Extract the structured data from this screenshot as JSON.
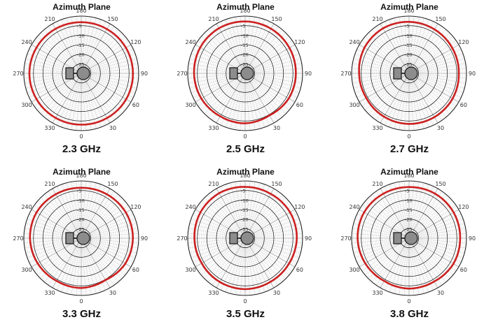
{
  "charts_title": "Azimuth Plane",
  "chart_data": [
    {
      "type": "polar-line",
      "title": "Azimuth Plane",
      "caption": "2.3 GHz",
      "angle_labels": [
        "180",
        "150",
        "120",
        "90",
        "60",
        "30",
        "0",
        "330",
        "300",
        "270",
        "240",
        "210"
      ],
      "radial_labels": [
        "-5",
        "-10",
        "-15",
        "-20",
        "-25"
      ],
      "rlim_db": [
        -30,
        0
      ],
      "grid": true,
      "series": [
        {
          "theta_deg": [
            0,
            30,
            60,
            90,
            120,
            150,
            180,
            210,
            240,
            270,
            300,
            330
          ],
          "r_db": [
            -3.1,
            -3.0,
            -2.9,
            -3.0,
            -3.1,
            -3.2,
            -3.2,
            -3.1,
            -3.0,
            -2.9,
            -3.0,
            -3.1
          ],
          "color": "#cc2020"
        }
      ]
    },
    {
      "type": "polar-line",
      "title": "Azimuth Plane",
      "caption": "2.5 GHz",
      "angle_labels": [
        "180",
        "150",
        "120",
        "90",
        "60",
        "30",
        "0",
        "330",
        "300",
        "270",
        "240",
        "210"
      ],
      "radial_labels": [
        "-5",
        "-10",
        "-15",
        "-20",
        "-25"
      ],
      "rlim_db": [
        -30,
        0
      ],
      "grid": true,
      "series": [
        {
          "theta_deg": [
            0,
            30,
            60,
            90,
            120,
            150,
            180,
            210,
            240,
            270,
            300,
            330
          ],
          "r_db": [
            -3.8,
            -4.6,
            -3.7,
            -3.5,
            -3.3,
            -3.0,
            -2.8,
            -2.7,
            -2.9,
            -3.3,
            -3.6,
            -4.0
          ],
          "color": "#cc2020"
        }
      ]
    },
    {
      "type": "polar-line",
      "title": "Azimuth Plane",
      "caption": "2.7 GHz",
      "angle_labels": [
        "180",
        "150",
        "120",
        "90",
        "60",
        "30",
        "0",
        "330",
        "300",
        "270",
        "240",
        "210"
      ],
      "radial_labels": [
        "-5",
        "-10",
        "-15",
        "-20",
        "-25"
      ],
      "rlim_db": [
        -30,
        0
      ],
      "grid": true,
      "series": [
        {
          "theta_deg": [
            0,
            30,
            60,
            90,
            120,
            150,
            180,
            210,
            240,
            270,
            300,
            330
          ],
          "r_db": [
            -3.5,
            -3.5,
            -3.7,
            -4.0,
            -3.8,
            -3.4,
            -3.0,
            -2.8,
            -3.1,
            -3.9,
            -4.2,
            -3.8
          ],
          "color": "#cc2020"
        }
      ]
    },
    {
      "type": "polar-line",
      "title": "Azimuth Plane",
      "caption": "3.3 GHz",
      "angle_labels": [
        "180",
        "150",
        "120",
        "90",
        "60",
        "30",
        "0",
        "330",
        "300",
        "270",
        "240",
        "210"
      ],
      "radial_labels": [
        "-5",
        "-10",
        "-15",
        "-20",
        "-25"
      ],
      "rlim_db": [
        -30,
        0
      ],
      "grid": true,
      "series": [
        {
          "theta_deg": [
            0,
            30,
            60,
            90,
            120,
            150,
            180,
            210,
            240,
            270,
            300,
            330
          ],
          "r_db": [
            -3.9,
            -4.7,
            -3.4,
            -3.0,
            -3.1,
            -3.4,
            -3.6,
            -3.4,
            -3.0,
            -3.2,
            -3.7,
            -4.2
          ],
          "color": "#cc2020"
        }
      ]
    },
    {
      "type": "polar-line",
      "title": "Azimuth Plane",
      "caption": "3.5 GHz",
      "angle_labels": [
        "180",
        "150",
        "120",
        "90",
        "60",
        "30",
        "0",
        "330",
        "300",
        "270",
        "240",
        "210"
      ],
      "radial_labels": [
        "-5",
        "-10",
        "-15",
        "-20",
        "-25"
      ],
      "rlim_db": [
        -30,
        0
      ],
      "grid": true,
      "series": [
        {
          "theta_deg": [
            0,
            30,
            60,
            90,
            120,
            150,
            180,
            210,
            240,
            270,
            300,
            330
          ],
          "r_db": [
            -3.3,
            -3.6,
            -3.5,
            -3.0,
            -2.9,
            -3.2,
            -3.1,
            -2.8,
            -3.0,
            -3.5,
            -3.8,
            -3.5
          ],
          "color": "#cc2020"
        }
      ]
    },
    {
      "type": "polar-line",
      "title": "Azimuth Plane",
      "caption": "3.8 GHz",
      "angle_labels": [
        "180",
        "150",
        "120",
        "90",
        "60",
        "30",
        "0",
        "330",
        "300",
        "270",
        "240",
        "210"
      ],
      "radial_labels": [
        "-5",
        "-10",
        "-15",
        "-20",
        "-25"
      ],
      "rlim_db": [
        -30,
        0
      ],
      "grid": true,
      "series": [
        {
          "theta_deg": [
            0,
            30,
            60,
            90,
            120,
            150,
            180,
            210,
            240,
            270,
            300,
            330
          ],
          "r_db": [
            -3.6,
            -3.8,
            -3.2,
            -3.3,
            -3.1,
            -3.0,
            -3.2,
            -3.1,
            -2.9,
            -3.1,
            -3.6,
            -4.1
          ],
          "color": "#cc2020"
        }
      ]
    }
  ]
}
